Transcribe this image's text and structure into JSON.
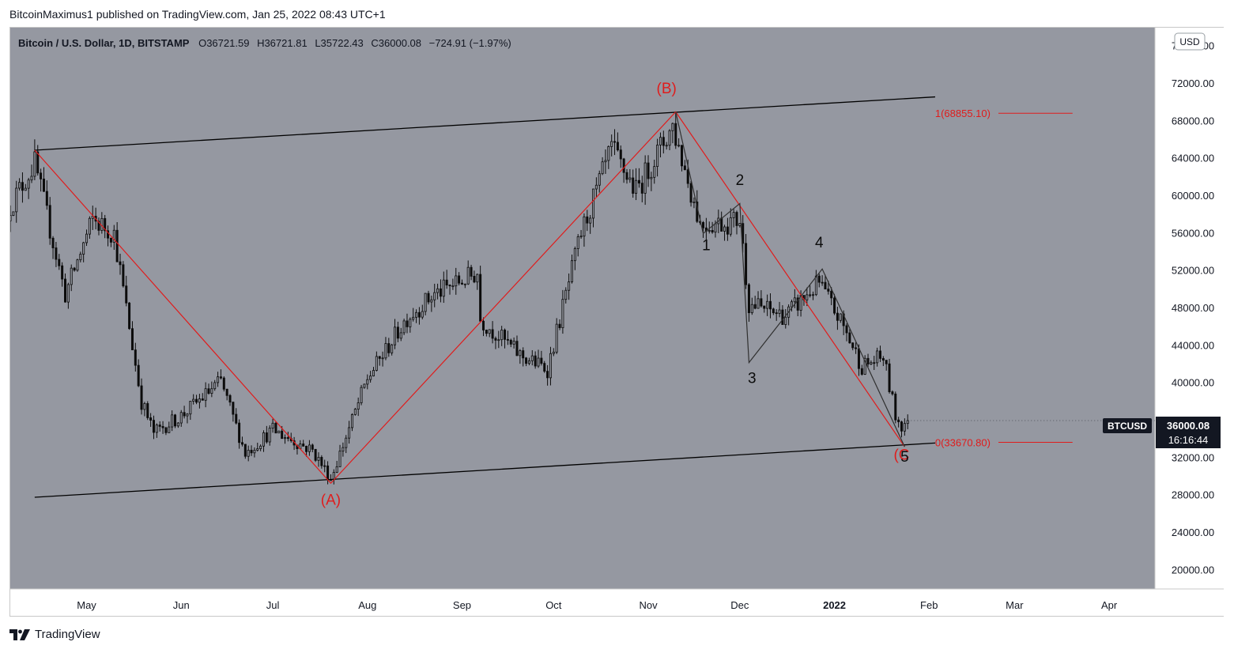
{
  "publisher": "BitcoinMaximus1 published on TradingView.com, Jan 25, 2022 08:43 UTC+1",
  "footer": {
    "brand": "TradingView",
    "logo_icon": "tradingview-logo-icon"
  },
  "colors": {
    "plot_bg": "#9598a1",
    "candle": "#0c0c0c",
    "wave_red": "#e01c1c",
    "wave_dark": "#303030",
    "channel": "#000000",
    "axis_text": "#131722"
  },
  "chart_data": {
    "type": "candlestick",
    "legend": {
      "symbol": "Bitcoin / U.S. Dollar, 1D, BITSTAMP",
      "open_label": "O",
      "open": "36721.59",
      "high_label": "H",
      "high": "36721.81",
      "low_label": "L",
      "low": "35722.43",
      "close_label": "C",
      "close": "36000.08",
      "change": "−724.91 (−1.97%)"
    },
    "currency_badge": "USD",
    "price_tag": {
      "symbol": "BTCUSD",
      "price": "36000.08",
      "countdown": "16:16:44",
      "value": 36000.08
    },
    "ylim": [
      18000,
      78000
    ],
    "y_ticks": [
      20000,
      24000,
      28000,
      32000,
      36000,
      40000,
      44000,
      48000,
      52000,
      56000,
      60000,
      64000,
      68000,
      72000,
      76000
    ],
    "y_tick_labels": [
      "20000.00",
      "24000.00",
      "28000.00",
      "32000.00",
      "36000.00",
      "40000.00",
      "44000.00",
      "48000.00",
      "52000.00",
      "56000.00",
      "60000.00",
      "64000.00",
      "68000.00",
      "72000.00",
      "76000.00"
    ],
    "x_range": [
      "2021-04-06",
      "2022-04-16"
    ],
    "x_ticks": [
      {
        "label": "May",
        "date": "2021-05-01"
      },
      {
        "label": "Jun",
        "date": "2021-06-01"
      },
      {
        "label": "Jul",
        "date": "2021-07-01"
      },
      {
        "label": "Aug",
        "date": "2021-08-01"
      },
      {
        "label": "Sep",
        "date": "2021-09-01"
      },
      {
        "label": "Oct",
        "date": "2021-10-01"
      },
      {
        "label": "Nov",
        "date": "2021-11-01"
      },
      {
        "label": "Dec",
        "date": "2021-12-01"
      },
      {
        "label": "2022",
        "date": "2022-01-01",
        "bold": true
      },
      {
        "label": "Feb",
        "date": "2022-02-01"
      },
      {
        "label": "Mar",
        "date": "2022-03-01"
      },
      {
        "label": "Apr",
        "date": "2022-04-01"
      }
    ],
    "anchors": [
      {
        "date": "2021-04-06",
        "price": 59000
      },
      {
        "date": "2021-04-14",
        "price": 63500
      },
      {
        "date": "2021-04-24",
        "price": 49500
      },
      {
        "date": "2021-05-03",
        "price": 57500
      },
      {
        "date": "2021-05-10",
        "price": 56000
      },
      {
        "date": "2021-05-19",
        "price": 38000
      },
      {
        "date": "2021-05-23",
        "price": 34700
      },
      {
        "date": "2021-06-01",
        "price": 36500
      },
      {
        "date": "2021-06-14",
        "price": 40200
      },
      {
        "date": "2021-06-22",
        "price": 32500
      },
      {
        "date": "2021-07-01",
        "price": 35000
      },
      {
        "date": "2021-07-14",
        "price": 32800
      },
      {
        "date": "2021-07-20",
        "price": 29800
      },
      {
        "date": "2021-08-01",
        "price": 40500
      },
      {
        "date": "2021-08-14",
        "price": 47000
      },
      {
        "date": "2021-08-23",
        "price": 49500
      },
      {
        "date": "2021-09-06",
        "price": 51800
      },
      {
        "date": "2021-09-07",
        "price": 46800
      },
      {
        "date": "2021-09-20",
        "price": 43000
      },
      {
        "date": "2021-09-29",
        "price": 41500
      },
      {
        "date": "2021-10-10",
        "price": 56000
      },
      {
        "date": "2021-10-20",
        "price": 65000
      },
      {
        "date": "2021-10-28",
        "price": 60500
      },
      {
        "date": "2021-11-09",
        "price": 67500
      },
      {
        "date": "2021-11-18",
        "price": 57000
      },
      {
        "date": "2021-11-28",
        "price": 57200
      },
      {
        "date": "2021-12-01",
        "price": 57500
      },
      {
        "date": "2021-12-04",
        "price": 48500
      },
      {
        "date": "2021-12-16",
        "price": 47200
      },
      {
        "date": "2021-12-27",
        "price": 50700
      },
      {
        "date": "2022-01-04",
        "price": 46000
      },
      {
        "date": "2022-01-10",
        "price": 41800
      },
      {
        "date": "2022-01-17",
        "price": 42800
      },
      {
        "date": "2022-01-21",
        "price": 36500
      },
      {
        "date": "2022-01-23",
        "price": 35500
      },
      {
        "date": "2022-01-25",
        "price": 36000
      }
    ],
    "channel": {
      "upper": [
        {
          "date": "2021-04-14",
          "price": 64900
        },
        {
          "date": "2022-02-03",
          "price": 70600
        }
      ],
      "lower": [
        {
          "date": "2021-04-14",
          "price": 27800
        },
        {
          "date": "2022-02-03",
          "price": 33600
        }
      ]
    },
    "abc_wave": [
      {
        "date": "2021-04-14",
        "price": 64900
      },
      {
        "date": "2021-07-20",
        "price": 29300
      },
      {
        "date": "2021-11-10",
        "price": 69000
      },
      {
        "date": "2022-01-24",
        "price": 33200
      }
    ],
    "impulse_wave": [
      {
        "date": "2021-11-10",
        "price": 69000
      },
      {
        "date": "2021-11-19",
        "price": 56000
      },
      {
        "date": "2021-12-01",
        "price": 59200
      },
      {
        "date": "2021-12-04",
        "price": 42200
      },
      {
        "date": "2021-12-28",
        "price": 52200
      },
      {
        "date": "2022-01-24",
        "price": 33200
      }
    ],
    "wave_labels": [
      {
        "text": "(A)",
        "date": "2021-07-20",
        "price": 27000,
        "color": "red"
      },
      {
        "text": "(B)",
        "date": "2021-11-07",
        "price": 71000,
        "color": "red"
      },
      {
        "text": "(C",
        "date": "2022-01-23",
        "price": 31800,
        "color": "red"
      },
      {
        "text": "1",
        "date": "2021-11-20",
        "price": 54200,
        "color": "dark"
      },
      {
        "text": "2",
        "date": "2021-12-01",
        "price": 61200,
        "color": "dark"
      },
      {
        "text": "3",
        "date": "2021-12-05",
        "price": 40000,
        "color": "dark"
      },
      {
        "text": "4",
        "date": "2021-12-27",
        "price": 54500,
        "color": "dark"
      },
      {
        "text": "5",
        "date": "2022-01-24",
        "price": 31600,
        "color": "dark"
      }
    ],
    "fib_levels": [
      {
        "label": "1(68855.10)",
        "price": 68855.1,
        "from": "2022-02-03",
        "to": "2022-03-20"
      },
      {
        "label": "0(33670.80)",
        "price": 33670.8,
        "from": "2022-02-03",
        "to": "2022-03-20"
      }
    ]
  }
}
